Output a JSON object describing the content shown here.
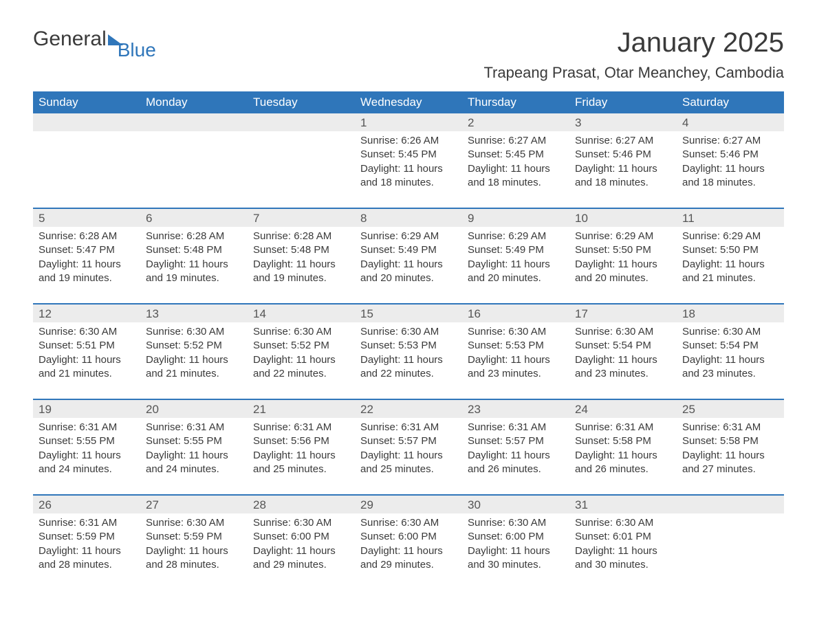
{
  "logo": {
    "word1": "General",
    "word2": "Blue"
  },
  "title": "January 2025",
  "location": "Trapeang Prasat, Otar Meanchey, Cambodia",
  "colors": {
    "header_bg": "#2f76ba",
    "header_text": "#ffffff",
    "daynum_bg": "#ececec",
    "row_border": "#2f76ba",
    "body_text": "#3a3a3a",
    "background": "#ffffff"
  },
  "typography": {
    "title_fontsize": 40,
    "location_fontsize": 22,
    "header_fontsize": 17,
    "daynum_fontsize": 17,
    "cell_fontsize": 15
  },
  "layout": {
    "columns": 7,
    "rows": 5
  },
  "labels": {
    "sunrise": "Sunrise: ",
    "sunset": "Sunset: ",
    "daylight": "Daylight: "
  },
  "weekdays": [
    "Sunday",
    "Monday",
    "Tuesday",
    "Wednesday",
    "Thursday",
    "Friday",
    "Saturday"
  ],
  "weeks": [
    [
      null,
      null,
      null,
      {
        "day": "1",
        "sunrise": "6:26 AM",
        "sunset": "5:45 PM",
        "daylight": "11 hours and 18 minutes."
      },
      {
        "day": "2",
        "sunrise": "6:27 AM",
        "sunset": "5:45 PM",
        "daylight": "11 hours and 18 minutes."
      },
      {
        "day": "3",
        "sunrise": "6:27 AM",
        "sunset": "5:46 PM",
        "daylight": "11 hours and 18 minutes."
      },
      {
        "day": "4",
        "sunrise": "6:27 AM",
        "sunset": "5:46 PM",
        "daylight": "11 hours and 18 minutes."
      }
    ],
    [
      {
        "day": "5",
        "sunrise": "6:28 AM",
        "sunset": "5:47 PM",
        "daylight": "11 hours and 19 minutes."
      },
      {
        "day": "6",
        "sunrise": "6:28 AM",
        "sunset": "5:48 PM",
        "daylight": "11 hours and 19 minutes."
      },
      {
        "day": "7",
        "sunrise": "6:28 AM",
        "sunset": "5:48 PM",
        "daylight": "11 hours and 19 minutes."
      },
      {
        "day": "8",
        "sunrise": "6:29 AM",
        "sunset": "5:49 PM",
        "daylight": "11 hours and 20 minutes."
      },
      {
        "day": "9",
        "sunrise": "6:29 AM",
        "sunset": "5:49 PM",
        "daylight": "11 hours and 20 minutes."
      },
      {
        "day": "10",
        "sunrise": "6:29 AM",
        "sunset": "5:50 PM",
        "daylight": "11 hours and 20 minutes."
      },
      {
        "day": "11",
        "sunrise": "6:29 AM",
        "sunset": "5:50 PM",
        "daylight": "11 hours and 21 minutes."
      }
    ],
    [
      {
        "day": "12",
        "sunrise": "6:30 AM",
        "sunset": "5:51 PM",
        "daylight": "11 hours and 21 minutes."
      },
      {
        "day": "13",
        "sunrise": "6:30 AM",
        "sunset": "5:52 PM",
        "daylight": "11 hours and 21 minutes."
      },
      {
        "day": "14",
        "sunrise": "6:30 AM",
        "sunset": "5:52 PM",
        "daylight": "11 hours and 22 minutes."
      },
      {
        "day": "15",
        "sunrise": "6:30 AM",
        "sunset": "5:53 PM",
        "daylight": "11 hours and 22 minutes."
      },
      {
        "day": "16",
        "sunrise": "6:30 AM",
        "sunset": "5:53 PM",
        "daylight": "11 hours and 23 minutes."
      },
      {
        "day": "17",
        "sunrise": "6:30 AM",
        "sunset": "5:54 PM",
        "daylight": "11 hours and 23 minutes."
      },
      {
        "day": "18",
        "sunrise": "6:30 AM",
        "sunset": "5:54 PM",
        "daylight": "11 hours and 23 minutes."
      }
    ],
    [
      {
        "day": "19",
        "sunrise": "6:31 AM",
        "sunset": "5:55 PM",
        "daylight": "11 hours and 24 minutes."
      },
      {
        "day": "20",
        "sunrise": "6:31 AM",
        "sunset": "5:55 PM",
        "daylight": "11 hours and 24 minutes."
      },
      {
        "day": "21",
        "sunrise": "6:31 AM",
        "sunset": "5:56 PM",
        "daylight": "11 hours and 25 minutes."
      },
      {
        "day": "22",
        "sunrise": "6:31 AM",
        "sunset": "5:57 PM",
        "daylight": "11 hours and 25 minutes."
      },
      {
        "day": "23",
        "sunrise": "6:31 AM",
        "sunset": "5:57 PM",
        "daylight": "11 hours and 26 minutes."
      },
      {
        "day": "24",
        "sunrise": "6:31 AM",
        "sunset": "5:58 PM",
        "daylight": "11 hours and 26 minutes."
      },
      {
        "day": "25",
        "sunrise": "6:31 AM",
        "sunset": "5:58 PM",
        "daylight": "11 hours and 27 minutes."
      }
    ],
    [
      {
        "day": "26",
        "sunrise": "6:31 AM",
        "sunset": "5:59 PM",
        "daylight": "11 hours and 28 minutes."
      },
      {
        "day": "27",
        "sunrise": "6:30 AM",
        "sunset": "5:59 PM",
        "daylight": "11 hours and 28 minutes."
      },
      {
        "day": "28",
        "sunrise": "6:30 AM",
        "sunset": "6:00 PM",
        "daylight": "11 hours and 29 minutes."
      },
      {
        "day": "29",
        "sunrise": "6:30 AM",
        "sunset": "6:00 PM",
        "daylight": "11 hours and 29 minutes."
      },
      {
        "day": "30",
        "sunrise": "6:30 AM",
        "sunset": "6:00 PM",
        "daylight": "11 hours and 30 minutes."
      },
      {
        "day": "31",
        "sunrise": "6:30 AM",
        "sunset": "6:01 PM",
        "daylight": "11 hours and 30 minutes."
      },
      null
    ]
  ]
}
